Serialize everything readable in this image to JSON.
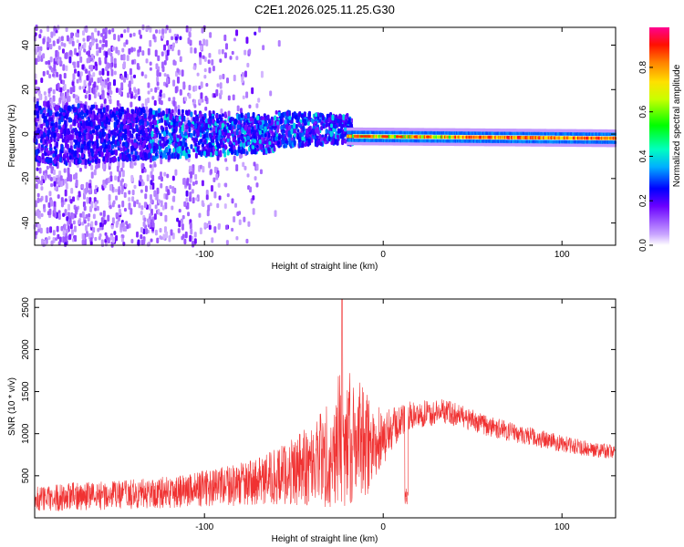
{
  "title": "C2E1.2026.025.11.25.G30",
  "chart_data": [
    {
      "type": "heatmap",
      "xlabel": "Height of straight line (km)",
      "ylabel": "Frequency (Hz)",
      "xlim": [
        -195,
        130
      ],
      "ylim": [
        -50,
        48
      ],
      "xticks": [
        -100,
        0,
        100
      ],
      "xtick_labels": [
        "-100",
        "0",
        "100"
      ],
      "yticks": [
        -40,
        -20,
        0,
        20,
        40
      ],
      "ytick_labels": [
        "-40",
        "-20",
        "0",
        "20",
        "40"
      ],
      "colorbar": {
        "label": "Normalized spectral amplitude",
        "range": [
          0,
          0.98
        ],
        "ticks": [
          0,
          0.2,
          0.4,
          0.6,
          0.8
        ],
        "tick_labels": [
          "0.0",
          "0.2",
          "0.4",
          "0.6",
          "0.8"
        ]
      },
      "grid": false
    },
    {
      "type": "line",
      "xlabel": "Height of straight line (km)",
      "ylabel": "SNR (10 * v/v)",
      "xlim": [
        -195,
        130
      ],
      "ylim": [
        0,
        2600
      ],
      "xticks": [
        -100,
        0,
        100
      ],
      "xtick_labels": [
        "-100",
        "0",
        "100"
      ],
      "yticks": [
        500,
        1000,
        1500,
        2000,
        2500
      ],
      "ytick_labels": [
        "500",
        "1000",
        "1500",
        "2000",
        "2500"
      ],
      "color": "#f03232",
      "envelope": {
        "x": [
          -195,
          -170,
          -150,
          -130,
          -110,
          -90,
          -70,
          -55,
          -40,
          -30,
          -25,
          -20,
          -15,
          -10,
          -5,
          0,
          5,
          10,
          15,
          20,
          30,
          35,
          40,
          60,
          80,
          100,
          115,
          130
        ],
        "mean": [
          220,
          260,
          270,
          290,
          330,
          370,
          430,
          520,
          640,
          780,
          900,
          950,
          900,
          880,
          900,
          950,
          1050,
          1150,
          1200,
          1230,
          1250,
          1270,
          1230,
          1080,
          980,
          880,
          820,
          780
        ],
        "spread": [
          150,
          170,
          170,
          180,
          200,
          230,
          280,
          360,
          500,
          650,
          800,
          800,
          750,
          650,
          500,
          350,
          250,
          200,
          180,
          160,
          150,
          150,
          140,
          120,
          110,
          100,
          90,
          80
        ]
      },
      "peak": {
        "x": -23,
        "y": 2600
      },
      "grid": false
    }
  ]
}
